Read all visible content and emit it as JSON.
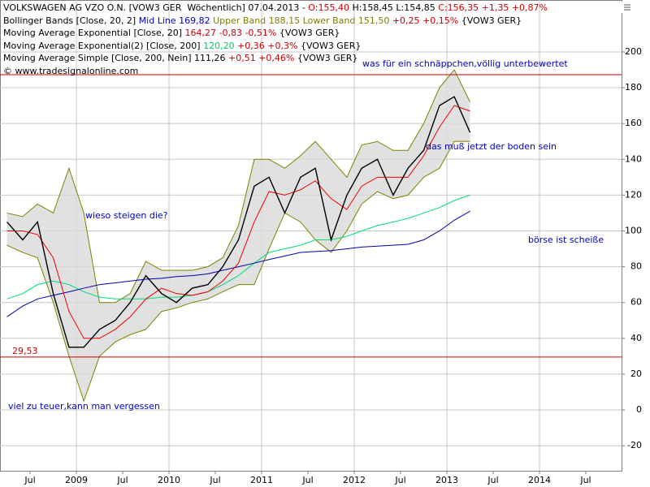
{
  "chart_data": {
    "type": "line",
    "header": [
      [
        {
          "text": "VOLKSWAGEN AG VZO O.N. [VOW3 GER  Wöchentlich] 07.04.2013 - ",
          "color": "#000000"
        },
        {
          "text": "O:155,40",
          "color": "#cc0000"
        },
        {
          "text": " H:158,45 L:154,85 ",
          "color": "#000000"
        },
        {
          "text": "C:156,35 +1,35 +0,87%",
          "color": "#cc0000"
        }
      ],
      [
        {
          "text": "Bollinger Bands [Close, 20, 2] ",
          "color": "#000000"
        },
        {
          "text": "Mid Line 169,82",
          "color": "#0000cc"
        },
        {
          "text": " Upper Band 188,15 Lower Band 151,50",
          "color": "#808000"
        },
        {
          "text": " +0,25 +0,15%",
          "color": "#cc0000"
        },
        {
          "text": " {VOW3 GER}",
          "color": "#000000"
        }
      ],
      [
        {
          "text": "Moving Average Exponential [Close, 20] ",
          "color": "#000000"
        },
        {
          "text": "164,27 -0,83 -0,51%",
          "color": "#cc0000"
        },
        {
          "text": " {VOW3 GER}",
          "color": "#000000"
        }
      ],
      [
        {
          "text": "Moving Average Exponential(2) [Close, 200] ",
          "color": "#000000"
        },
        {
          "text": "120,20",
          "color": "#00cc66"
        },
        {
          "text": " +0,36 +0,3%",
          "color": "#cc0000"
        },
        {
          "text": " {VOW3 GER}",
          "color": "#000000"
        }
      ],
      [
        {
          "text": "Moving Average Simple [Close, 200, Nein] 111,26 ",
          "color": "#000000"
        },
        {
          "text": "+0,51 +0,46%",
          "color": "#cc0000"
        },
        {
          "text": " {VOW3 GER}",
          "color": "#000000"
        }
      ],
      [
        {
          "text": "© www.tradesignalonline.com",
          "color": "#000000"
        }
      ]
    ],
    "annotations": [
      "wieso steigen die?",
      "viel zu teuer,kann man vergessen",
      "was für ein schnäppchen,völlig unterbewertet",
      "das muß jetzt der boden sein",
      "börse ist scheiße"
    ],
    "x": [
      2008.25,
      2008.42,
      2008.58,
      2008.75,
      2008.92,
      2009.08,
      2009.25,
      2009.42,
      2009.58,
      2009.75,
      2009.92,
      2010.08,
      2010.25,
      2010.42,
      2010.58,
      2010.75,
      2010.92,
      2011.08,
      2011.25,
      2011.42,
      2011.58,
      2011.75,
      2011.92,
      2012.08,
      2012.25,
      2012.42,
      2012.58,
      2012.75,
      2012.92,
      2013.08,
      2013.25
    ],
    "band": {
      "color": "#d9d9d9",
      "edge": "#808000",
      "upper": [
        110,
        108,
        115,
        110,
        135,
        110,
        60,
        60,
        65,
        83,
        78,
        78,
        78,
        80,
        85,
        103,
        140,
        140,
        135,
        142,
        150,
        140,
        130,
        148,
        150,
        145,
        145,
        160,
        180,
        190,
        172
      ],
      "lower": [
        92,
        88,
        85,
        60,
        30,
        5,
        30,
        38,
        42,
        45,
        55,
        57,
        60,
        62,
        66,
        70,
        70,
        90,
        110,
        105,
        95,
        88,
        100,
        115,
        122,
        118,
        120,
        130,
        135,
        150,
        150
      ]
    },
    "series": [
      {
        "color": "#00dd77",
        "values": [
          62,
          65,
          70,
          72,
          70,
          66,
          63,
          62,
          62,
          62,
          63,
          63,
          64,
          66,
          70,
          75,
          82,
          88,
          90,
          92,
          95,
          95,
          97,
          100,
          103,
          105,
          107,
          110,
          113,
          117,
          120
        ]
      },
      {
        "color": "#0000aa",
        "values": [
          52,
          58,
          62,
          64,
          66,
          68,
          70,
          71,
          72,
          73,
          73.5,
          74.5,
          75,
          76,
          78,
          80,
          82,
          84,
          86,
          88,
          88.5,
          89,
          90,
          91,
          91.5,
          92,
          92.5,
          95,
          100,
          106,
          111
        ]
      },
      {
        "color": "#ee0000",
        "values": [
          100,
          100,
          98,
          85,
          55,
          40,
          40,
          45,
          52,
          62,
          68,
          65,
          64,
          66,
          72,
          82,
          105,
          122,
          120,
          123,
          128,
          118,
          112,
          125,
          130,
          130,
          130,
          142,
          158,
          170,
          167
        ]
      },
      {
        "color": "#000000",
        "values": [
          105,
          95,
          105,
          65,
          35,
          35,
          45,
          50,
          60,
          75,
          65,
          60,
          68,
          70,
          80,
          95,
          125,
          130,
          110,
          130,
          135,
          95,
          120,
          135,
          140,
          120,
          135,
          145,
          170,
          175,
          155
        ]
      }
    ],
    "hlines": [
      {
        "value": 29.53,
        "label": "29,53",
        "color": "#cc0000"
      },
      {
        "value": 187.3,
        "color": "#cc0000"
      }
    ],
    "xlim": [
      2008.175,
      2014.886
    ],
    "xticks": [
      {
        "value": 2008.5,
        "label": "Jul"
      },
      2009,
      {
        "value": 2009.5,
        "label": "Jul"
      },
      2010,
      {
        "value": 2010.5,
        "label": "Jul"
      },
      2011,
      {
        "value": 2011.5,
        "label": "Jul"
      },
      2012,
      {
        "value": 2012.5,
        "label": "Jul"
      },
      2013,
      {
        "value": 2013.5,
        "label": "Jul"
      },
      2014,
      {
        "value": 2014.5,
        "label": "Jul"
      }
    ],
    "ylim": [
      -34,
      229
    ],
    "yticks": [
      -20,
      0,
      20,
      40,
      60,
      80,
      100,
      120,
      140,
      160,
      180,
      200
    ],
    "grid": true
  }
}
